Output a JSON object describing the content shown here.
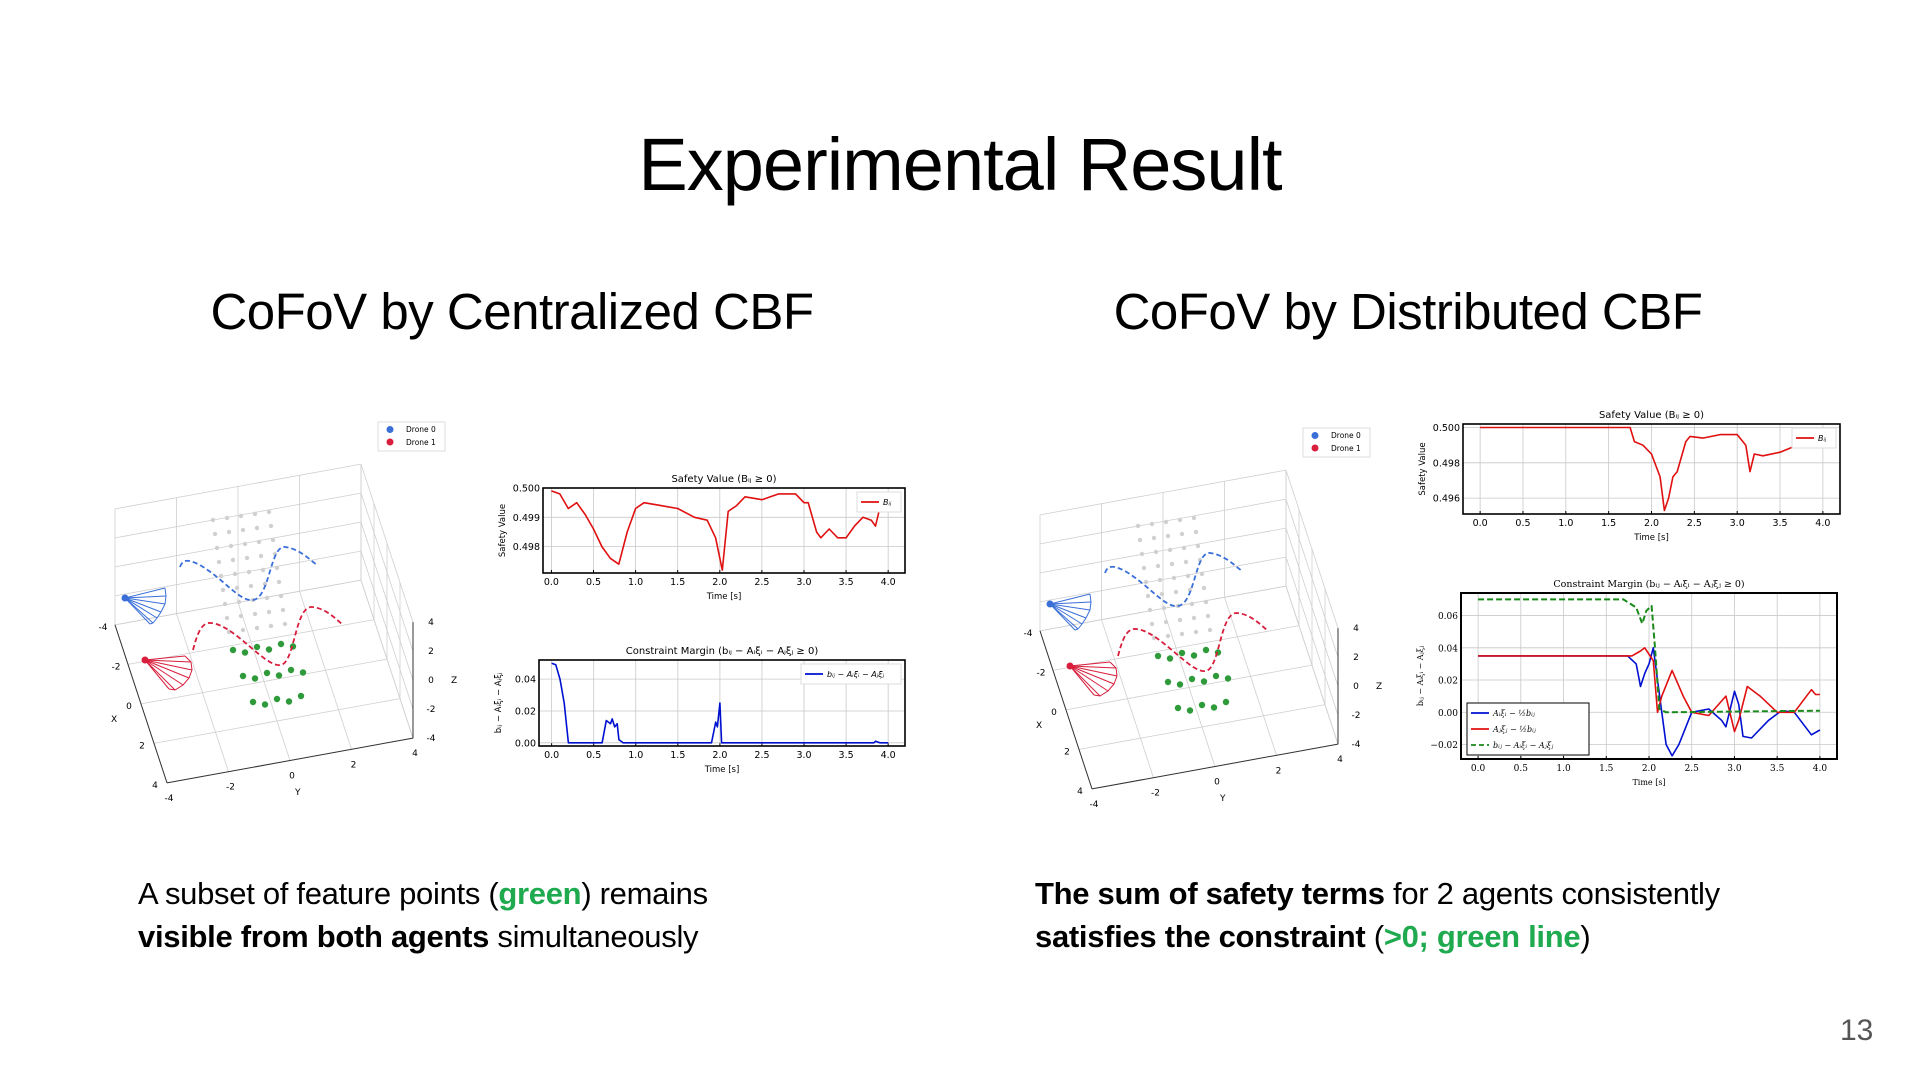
{
  "slide": {
    "title": "Experimental Result",
    "page_number": "13",
    "left": {
      "subtitle": "CoFoV by Centralized CBF",
      "caption": {
        "line1_a": "A subset of feature points (",
        "line1_green": "green",
        "line1_b": ") remains",
        "line2_bold": "visible from both agents",
        "line2_rest": " simultaneously"
      }
    },
    "right": {
      "subtitle": "CoFoV by Distributed CBF",
      "caption": {
        "line1_bold": "The sum of safety terms",
        "line1_rest": " for 2 agents consistently",
        "line2_bold": "satisfies the constraint",
        "line2_a": " (",
        "line2_green": ">0; green line",
        "line2_b": ")"
      }
    }
  },
  "plots3d": {
    "legend": [
      "Drone 0",
      "Drone 1"
    ],
    "axis_labels": {
      "x": "X",
      "y": "Y",
      "z": "Z"
    },
    "ticks": [
      "-4",
      "-2",
      "0",
      "2",
      "4"
    ],
    "colors": {
      "drone0": "#3a6fd8",
      "drone1": "#d81e3c",
      "shared_points": "#2e9a3a",
      "other_points": "#d0d0d0"
    }
  },
  "colors": {
    "accent_green": "#1faa50",
    "red": "#e01010",
    "blue": "#0010d0",
    "green_dash": "#1a8a1a"
  },
  "chart_data": [
    {
      "id": "left-safety",
      "type": "line",
      "title": "Safety Value (Bᵢⱼ ≥ 0)",
      "xlabel": "Time [s]",
      "ylabel": "Safety Value",
      "xlim": [
        -0.1,
        4.2
      ],
      "ylim": [
        0.4971,
        0.5
      ],
      "xticks": [
        0.0,
        0.5,
        1.0,
        1.5,
        2.0,
        2.5,
        3.0,
        3.5,
        4.0
      ],
      "yticks": [
        0.498,
        0.499,
        0.5
      ],
      "ytick_labels": [
        "0.498",
        "0.499",
        "0.500"
      ],
      "grid": true,
      "legend": "top-right",
      "series": [
        {
          "name": "Bᵢⱼ",
          "color": "#e01010",
          "dash": false,
          "x": [
            0,
            0.1,
            0.2,
            0.3,
            0.4,
            0.5,
            0.6,
            0.7,
            0.8,
            0.9,
            1.0,
            1.1,
            1.3,
            1.5,
            1.7,
            1.85,
            1.95,
            2.03,
            2.1,
            2.2,
            2.3,
            2.5,
            2.7,
            2.9,
            3.0,
            3.05,
            3.15,
            3.2,
            3.3,
            3.4,
            3.5,
            3.6,
            3.7,
            3.8,
            3.85,
            3.9
          ],
          "y": [
            0.4999,
            0.4998,
            0.4993,
            0.4995,
            0.4991,
            0.4986,
            0.498,
            0.4976,
            0.4974,
            0.4985,
            0.4993,
            0.4995,
            0.4994,
            0.4993,
            0.499,
            0.4989,
            0.4983,
            0.4972,
            0.4992,
            0.4994,
            0.4997,
            0.4996,
            0.4998,
            0.4998,
            0.4995,
            0.4995,
            0.4985,
            0.4983,
            0.4986,
            0.4983,
            0.4983,
            0.4987,
            0.499,
            0.4989,
            0.4987,
            0.4993
          ]
        }
      ]
    },
    {
      "id": "left-margin",
      "type": "line",
      "title": "Constraint Margin (bᵢⱼ − Aᵢξᵢ − Aⱼξⱼ ≥ 0)",
      "xlabel": "Time [s]",
      "ylabel": "bᵢⱼ − Aᵢξᵢ − Aⱼξⱼ",
      "xlim": [
        -0.15,
        4.2
      ],
      "ylim": [
        -0.002,
        0.052
      ],
      "xticks": [
        0.0,
        0.5,
        1.0,
        1.5,
        2.0,
        2.5,
        3.0,
        3.5,
        4.0
      ],
      "yticks": [
        0.0,
        0.02,
        0.04
      ],
      "ytick_labels": [
        "0.00",
        "0.02",
        "0.04"
      ],
      "grid": true,
      "legend": "top-right",
      "series": [
        {
          "name": "bᵢⱼ − Aᵢξᵢ − Aⱼξⱼ",
          "color": "#0010d0",
          "dash": false,
          "x": [
            0,
            0.05,
            0.1,
            0.15,
            0.2,
            0.6,
            0.65,
            0.7,
            0.72,
            0.75,
            0.78,
            0.8,
            0.85,
            1.9,
            1.95,
            1.97,
            2.0,
            2.02,
            3.83,
            3.85,
            3.9,
            4.0
          ],
          "y": [
            0.05,
            0.049,
            0.04,
            0.025,
            0,
            0,
            0.014,
            0.012,
            0.015,
            0.01,
            0.012,
            0.002,
            0,
            0,
            0.013,
            0.01,
            0.025,
            0,
            0,
            0.001,
            0,
            0
          ]
        }
      ]
    },
    {
      "id": "right-safety",
      "type": "line",
      "title": "Safety Value (Bᵢⱼ ≥ 0)",
      "xlabel": "Time [s]",
      "ylabel": "Safety Value",
      "xlim": [
        -0.2,
        4.2
      ],
      "ylim": [
        0.4951,
        0.5002
      ],
      "xticks": [
        0.0,
        0.5,
        1.0,
        1.5,
        2.0,
        2.5,
        3.0,
        3.5,
        4.0
      ],
      "yticks": [
        0.496,
        0.498,
        0.5
      ],
      "ytick_labels": [
        "0.496",
        "0.498",
        "0.500"
      ],
      "grid": true,
      "legend": "top-right",
      "series": [
        {
          "name": "Bᵢⱼ",
          "color": "#e01010",
          "dash": false,
          "x": [
            0,
            1.75,
            1.8,
            1.9,
            2.0,
            2.1,
            2.15,
            2.2,
            2.25,
            2.3,
            2.4,
            2.45,
            2.6,
            2.8,
            3.0,
            3.1,
            3.15,
            3.2,
            3.3,
            3.5,
            3.6,
            3.8,
            4.0
          ],
          "y": [
            0.5,
            0.5,
            0.4992,
            0.499,
            0.4985,
            0.4972,
            0.4953,
            0.496,
            0.4972,
            0.4975,
            0.4992,
            0.4995,
            0.4994,
            0.4996,
            0.4996,
            0.499,
            0.4975,
            0.4985,
            0.4984,
            0.4986,
            0.4988,
            0.4992,
            0.4995
          ]
        }
      ]
    },
    {
      "id": "right-margin",
      "type": "line",
      "title": "Constraint Margin (bᵢⱼ − Aᵢξᵢ − Aⱼξⱼ ≥ 0)",
      "xlabel": "Time [s]",
      "ylabel": "bᵢⱼ − Aᵢξᵢ − Aⱼξⱼ",
      "xlim": [
        -0.2,
        4.2
      ],
      "ylim": [
        -0.029,
        0.074
      ],
      "xticks": [
        0.0,
        0.5,
        1.0,
        1.5,
        2.0,
        2.5,
        3.0,
        3.5,
        4.0
      ],
      "yticks": [
        -0.02,
        0.0,
        0.02,
        0.04,
        0.06
      ],
      "ytick_labels": [
        "−0.02",
        "0.00",
        "0.02",
        "0.04",
        "0.06"
      ],
      "grid": true,
      "legend": "bottom-left",
      "series": [
        {
          "name": "Aᵢξᵢ − ½bᵢⱼ",
          "color": "#0010d0",
          "dash": false,
          "x": [
            0,
            1.75,
            1.85,
            1.9,
            1.95,
            2.0,
            2.05,
            2.1,
            2.15,
            2.2,
            2.27,
            2.35,
            2.5,
            2.7,
            2.85,
            2.9,
            3.0,
            3.05,
            3.1,
            3.2,
            3.4,
            3.55,
            3.7,
            3.9,
            4.0
          ],
          "y": [
            0.035,
            0.035,
            0.03,
            0.016,
            0.024,
            0.03,
            0.04,
            0.02,
            0,
            -0.02,
            -0.027,
            -0.02,
            0,
            0.002,
            -0.005,
            -0.009,
            0.013,
            0.005,
            -0.015,
            -0.016,
            -0.005,
            0.001,
            0,
            -0.014,
            -0.011
          ]
        },
        {
          "name": "Aⱼξⱼ − ½bᵢⱼ",
          "color": "#e01010",
          "dash": false,
          "x": [
            0,
            1.8,
            1.9,
            1.95,
            2.05,
            2.1,
            2.15,
            2.27,
            2.4,
            2.5,
            2.7,
            2.9,
            3.0,
            3.05,
            3.15,
            3.3,
            3.5,
            3.7,
            3.9,
            3.95,
            4.0
          ],
          "y": [
            0.035,
            0.035,
            0.038,
            0.04,
            0.032,
            0,
            0.01,
            0.026,
            0.01,
            0,
            -0.002,
            0.01,
            -0.012,
            -0.005,
            0.016,
            0.01,
            0,
            0,
            0.014,
            0.011,
            0.011
          ]
        },
        {
          "name": "bᵢⱼ − Aᵢξᵢ − Aⱼξⱼ",
          "color": "#1a8a1a",
          "dash": true,
          "x": [
            0,
            1.7,
            1.85,
            1.92,
            1.97,
            2.03,
            2.07,
            2.12,
            2.2,
            4.0
          ],
          "y": [
            0.07,
            0.07,
            0.065,
            0.055,
            0.063,
            0.066,
            0.04,
            0.002,
            0,
            0.001
          ]
        }
      ]
    }
  ]
}
